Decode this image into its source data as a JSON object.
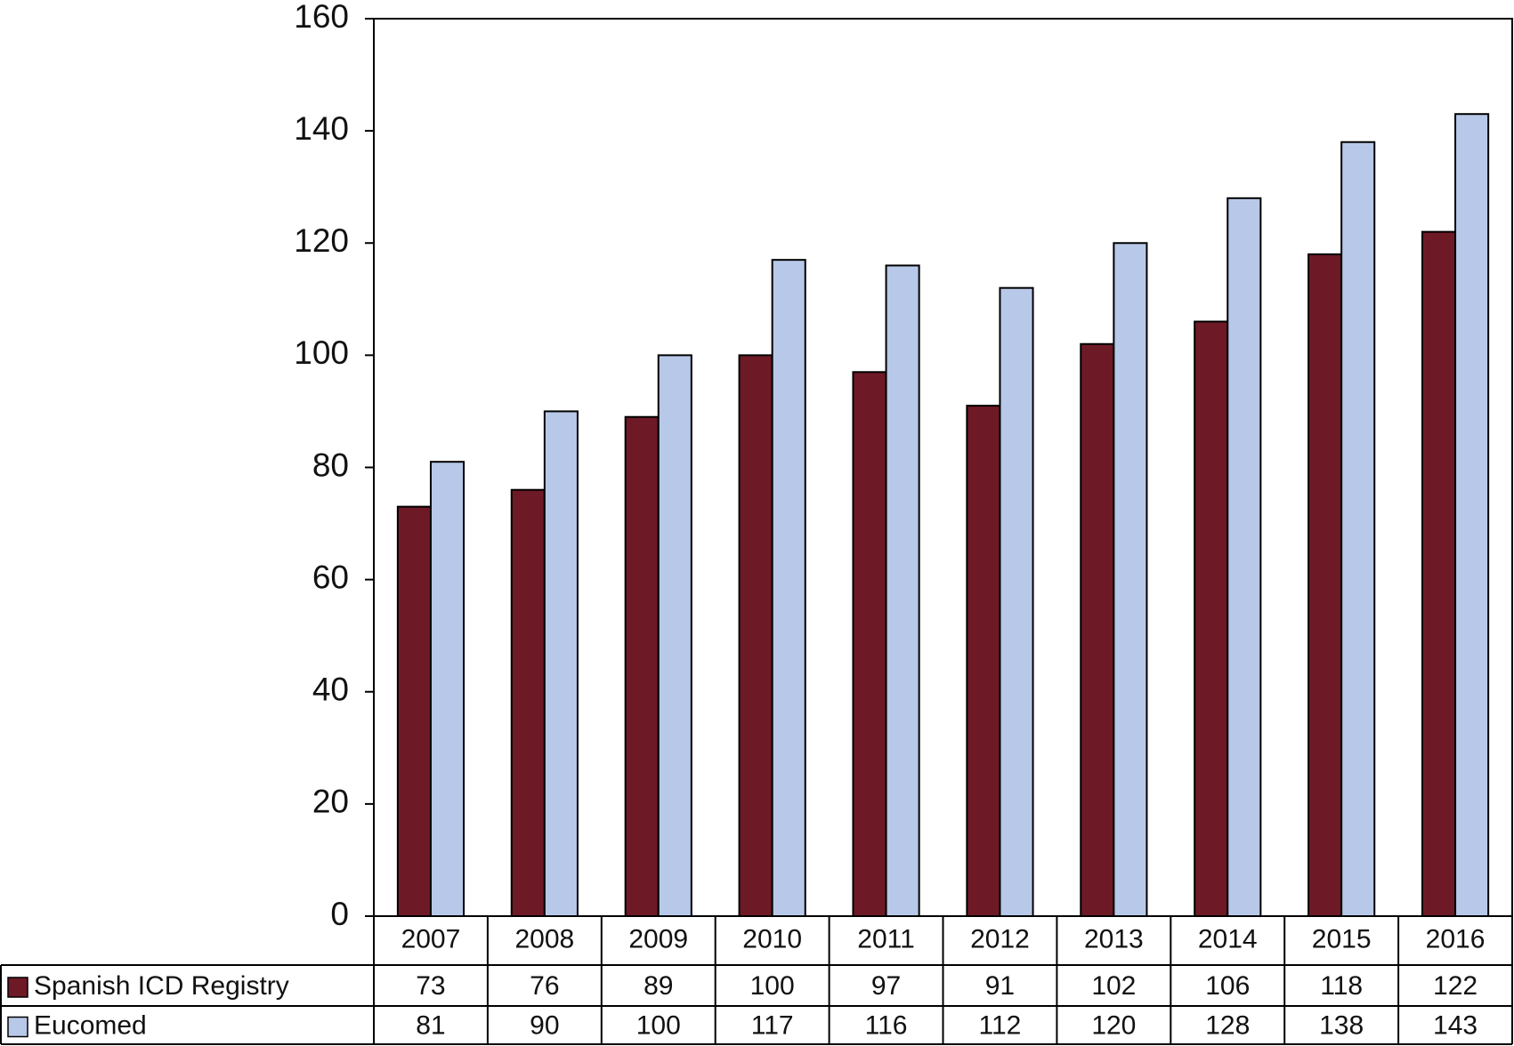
{
  "chart_data": {
    "type": "bar",
    "categories": [
      "2007",
      "2008",
      "2009",
      "2010",
      "2011",
      "2012",
      "2013",
      "2014",
      "2015",
      "2016"
    ],
    "series": [
      {
        "name": "Spanish ICD Registry",
        "color": "#6e1a26",
        "values": [
          73,
          76,
          89,
          100,
          97,
          91,
          102,
          106,
          118,
          122
        ]
      },
      {
        "name": "Eucomed",
        "color": "#b8c8e8",
        "values": [
          81,
          90,
          100,
          117,
          116,
          112,
          120,
          128,
          138,
          143
        ]
      }
    ],
    "ylim": [
      0,
      160
    ],
    "yticks": [
      0,
      20,
      40,
      60,
      80,
      100,
      120,
      140,
      160
    ],
    "grid": false
  }
}
